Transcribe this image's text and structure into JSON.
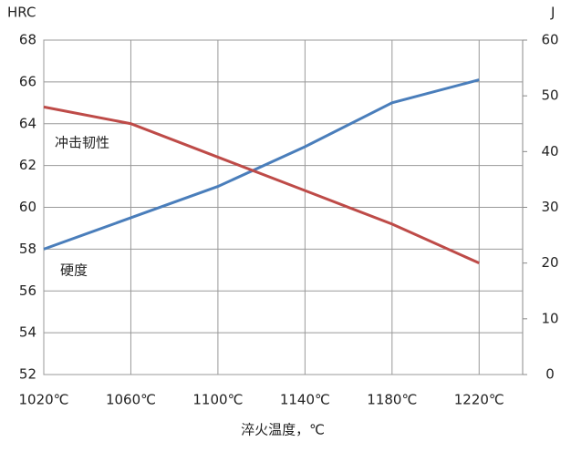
{
  "chart_data": {
    "type": "line",
    "x_label": "淬火温度，℃",
    "y_label": "HRC",
    "y2_label": "J",
    "x": [
      1020,
      1060,
      1100,
      1140,
      1180,
      1220
    ],
    "xlim": [
      1020,
      1240
    ],
    "xticks": [
      {
        "value": 1020,
        "label": "1020℃"
      },
      {
        "value": 1060,
        "label": "1060℃"
      },
      {
        "value": 1100,
        "label": "1100℃"
      },
      {
        "value": 1140,
        "label": "1140℃"
      },
      {
        "value": 1180,
        "label": "1180℃"
      },
      {
        "value": 1220,
        "label": "1220℃"
      }
    ],
    "ylim": [
      52,
      68
    ],
    "yticks": [
      52,
      54,
      56,
      58,
      60,
      62,
      64,
      66,
      68
    ],
    "y2lim": [
      0,
      60
    ],
    "y2ticks": [
      0,
      10,
      20,
      30,
      40,
      50,
      60
    ],
    "grid": true,
    "series": [
      {
        "name": "硬度",
        "color": "#4a7ebb",
        "values": [
          58,
          59.5,
          61,
          62.9,
          65,
          66.1
        ]
      },
      {
        "name": "冲击韧性",
        "color": "#be4b48",
        "axis": "y2",
        "values": [
          48,
          45,
          39,
          33,
          27,
          20
        ]
      }
    ]
  }
}
